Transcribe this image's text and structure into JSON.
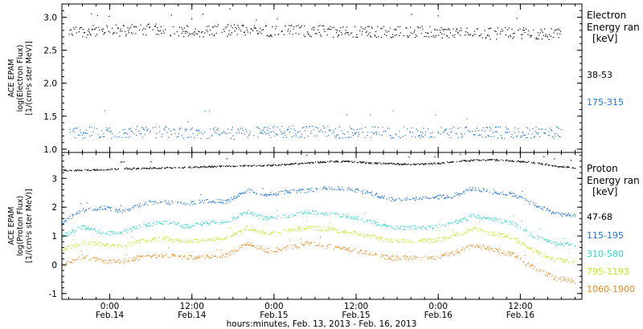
{
  "x_axis": {
    "title": "hours:minutes, Feb. 13, 2013 - Feb. 16, 2013",
    "ticks": [
      {
        "time": "0:00",
        "date": "Feb.14",
        "hour": 0
      },
      {
        "time": "12:00",
        "date": "Feb.14",
        "hour": 12
      },
      {
        "time": "0:00",
        "date": "Feb.15",
        "hour": 24
      },
      {
        "time": "12:00",
        "date": "Feb.15",
        "hour": 36
      },
      {
        "time": "0:00",
        "date": "Feb.16",
        "hour": 48
      },
      {
        "time": "12:00",
        "date": "Feb.16",
        "hour": 60
      }
    ],
    "range_hours": [
      -7,
      69
    ]
  },
  "colors": {
    "black": "#000000",
    "blue": "#1c75d8",
    "cyan": "#2ad6c8",
    "yellow": "#c6e61a",
    "orange": "#ec8a1e"
  },
  "chart_data": [
    {
      "type": "scatter",
      "panel": "electron",
      "ylabel_lines": [
        "ACE EPAM",
        "log(Electron Flux)",
        "[1/(cm²s ster MeV)]"
      ],
      "ylim": [
        0.95,
        3.2
      ],
      "yticks": [
        1.0,
        1.5,
        2.0,
        2.5,
        3.0
      ],
      "ytick_labels": [
        "1.0",
        "1.5",
        "2.0",
        "2.5",
        "3.0"
      ],
      "legend_title_lines": [
        "Electron",
        "Energy ran",
        "[keV]"
      ],
      "x_hours": [
        -6,
        0,
        6,
        12,
        18,
        24,
        30,
        36,
        42,
        48,
        54,
        60,
        66
      ],
      "series": [
        {
          "name": "38-53",
          "color": "#000000",
          "values": [
            2.78,
            2.8,
            2.82,
            2.79,
            2.81,
            2.8,
            2.8,
            2.78,
            2.79,
            2.78,
            2.76,
            2.77,
            2.75
          ]
        },
        {
          "name": "175-315",
          "color": "#1c75d8",
          "values": [
            1.25,
            1.26,
            1.26,
            1.25,
            1.25,
            1.27,
            1.27,
            1.26,
            1.26,
            1.25,
            1.26,
            1.25,
            1.26
          ]
        }
      ]
    },
    {
      "type": "scatter",
      "panel": "proton",
      "ylabel_lines": [
        "ACE EPAM",
        "log(Proton Flux)",
        "[1/(cm²s ster MeV)]"
      ],
      "ylim": [
        -1.2,
        3.9
      ],
      "yticks": [
        -1,
        0,
        1,
        2,
        3
      ],
      "ytick_labels": [
        "-1",
        "0",
        "1",
        "2",
        "3"
      ],
      "legend_title_lines": [
        "Proton",
        "Energy ran",
        "[keV]"
      ],
      "x_hours": [
        -7,
        -4,
        -1,
        2,
        5,
        8,
        11,
        14,
        17,
        20,
        23,
        26,
        29,
        32,
        35,
        38,
        41,
        44,
        47,
        50,
        53,
        56,
        59,
        62,
        65,
        68
      ],
      "series": [
        {
          "name": "47-68",
          "color": "#000000",
          "values": [
            3.3,
            3.3,
            3.32,
            3.35,
            3.36,
            3.38,
            3.4,
            3.42,
            3.44,
            3.45,
            3.46,
            3.5,
            3.55,
            3.6,
            3.6,
            3.55,
            3.52,
            3.5,
            3.52,
            3.58,
            3.65,
            3.66,
            3.62,
            3.55,
            3.45,
            3.38
          ]
        },
        {
          "name": "115-195",
          "color": "#1c75d8",
          "values": [
            1.5,
            1.9,
            2.0,
            1.85,
            2.15,
            2.2,
            2.1,
            2.25,
            2.2,
            2.6,
            2.45,
            2.55,
            2.6,
            2.7,
            2.65,
            2.5,
            2.3,
            2.3,
            2.35,
            2.4,
            2.65,
            2.55,
            2.45,
            2.1,
            1.8,
            1.7
          ]
        },
        {
          "name": "310-580",
          "color": "#2ad6c8",
          "values": [
            1.0,
            1.35,
            1.1,
            1.15,
            1.4,
            1.5,
            1.35,
            1.45,
            1.5,
            1.85,
            1.6,
            1.7,
            1.85,
            1.8,
            1.7,
            1.5,
            1.3,
            1.3,
            1.3,
            1.45,
            1.7,
            1.6,
            1.45,
            1.0,
            0.75,
            0.7
          ]
        },
        {
          "name": "795-1193",
          "color": "#c6e61a",
          "values": [
            0.5,
            0.8,
            0.7,
            0.7,
            0.85,
            0.95,
            0.8,
            0.9,
            0.95,
            1.3,
            1.1,
            1.2,
            1.3,
            1.25,
            1.15,
            1.0,
            0.85,
            0.85,
            0.85,
            1.0,
            1.25,
            1.1,
            0.95,
            0.5,
            0.2,
            0.1
          ]
        },
        {
          "name": "1060-1900",
          "color": "#ec8a1e",
          "values": [
            0.0,
            0.3,
            0.15,
            0.15,
            0.3,
            0.35,
            0.25,
            0.3,
            0.35,
            0.75,
            0.5,
            0.6,
            0.75,
            0.65,
            0.55,
            0.4,
            0.25,
            0.25,
            0.25,
            0.4,
            0.7,
            0.55,
            0.35,
            -0.1,
            -0.45,
            -0.55
          ]
        }
      ]
    }
  ]
}
